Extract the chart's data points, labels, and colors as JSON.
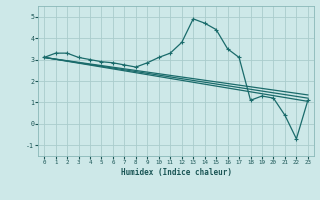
{
  "xlabel": "Humidex (Indice chaleur)",
  "bg_color": "#cde8e8",
  "grid_color": "#aacccc",
  "line_color": "#1a6b6b",
  "xlim": [
    -0.5,
    23.5
  ],
  "ylim": [
    -1.5,
    5.5
  ],
  "yticks": [
    -1,
    0,
    1,
    2,
    3,
    4,
    5
  ],
  "xticks": [
    0,
    1,
    2,
    3,
    4,
    5,
    6,
    7,
    8,
    9,
    10,
    11,
    12,
    13,
    14,
    15,
    16,
    17,
    18,
    19,
    20,
    21,
    22,
    23
  ],
  "main_series": [
    3.1,
    3.3,
    3.3,
    3.1,
    3.0,
    2.9,
    2.85,
    2.75,
    2.65,
    2.85,
    3.1,
    3.3,
    3.8,
    4.9,
    4.7,
    4.4,
    3.5,
    3.1,
    1.1,
    1.3,
    1.2,
    0.4,
    -0.7,
    1.1
  ],
  "trend_lines": [
    {
      "x_start": 0,
      "y_start": 3.1,
      "x_end": 23,
      "y_end": 1.05
    },
    {
      "x_start": 0,
      "y_start": 3.1,
      "x_end": 23,
      "y_end": 1.2
    },
    {
      "x_start": 0,
      "y_start": 3.1,
      "x_end": 23,
      "y_end": 1.35
    }
  ],
  "marker": "+",
  "markersize": 3.5,
  "linewidth": 0.9
}
